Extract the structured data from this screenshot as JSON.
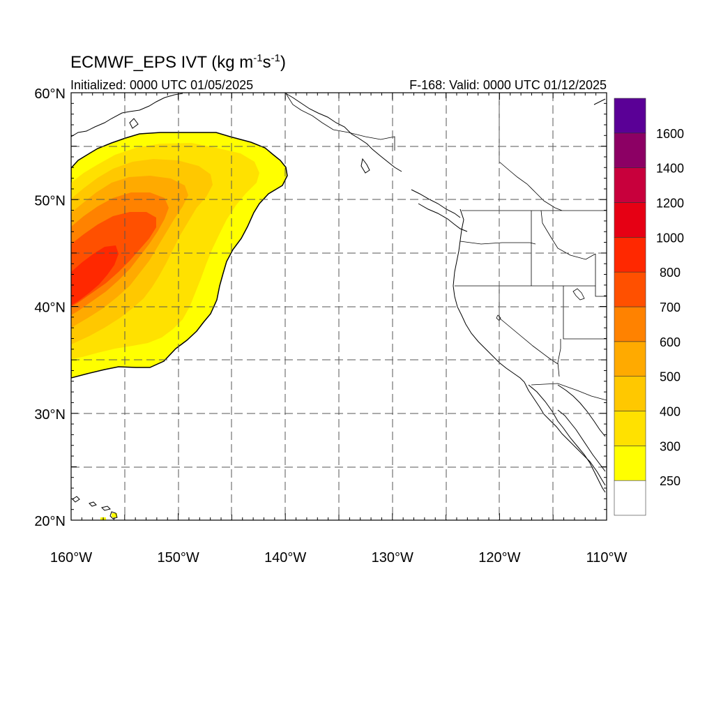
{
  "title": {
    "main": "ECMWF_EPS IVT (kg m",
    "sup1": "-1",
    "mid": "s",
    "sup2": "-1",
    "end": ")"
  },
  "subtitle_left": "Initialized: 0000 UTC 01/05/2025",
  "subtitle_right": "F-168: Valid: 0000 UTC 01/12/2025",
  "axes": {
    "lon_min": -160,
    "lon_max": -110,
    "lat_min": 20,
    "lat_max": 60,
    "x_ticks": [
      {
        "value": -160,
        "label": "160°W"
      },
      {
        "value": -150,
        "label": "150°W"
      },
      {
        "value": -140,
        "label": "140°W"
      },
      {
        "value": -130,
        "label": "130°W"
      },
      {
        "value": -120,
        "label": "120°W"
      },
      {
        "value": -110,
        "label": "110°W"
      }
    ],
    "y_ticks": [
      {
        "value": 20,
        "label": "20°N"
      },
      {
        "value": 30,
        "label": "30°N"
      },
      {
        "value": 40,
        "label": "40°N"
      },
      {
        "value": 50,
        "label": "50°N"
      },
      {
        "value": 60,
        "label": "60°N"
      }
    ],
    "grid": true
  },
  "colorbar": {
    "levels": [
      250,
      300,
      400,
      500,
      600,
      700,
      800,
      1000,
      1200,
      1400,
      1600
    ],
    "colors": [
      "#ffffff",
      "#ffff00",
      "#ffe100",
      "#ffc800",
      "#ffaa00",
      "#ff8200",
      "#ff5000",
      "#ff2800",
      "#e60014",
      "#c8003c",
      "#8c0064",
      "#5a0096"
    ]
  },
  "chart_data": {
    "type": "heatmap",
    "variable": "IVT",
    "units": "kg m-1 s-1",
    "features": [
      {
        "region": "Northeast Pacific plume",
        "lon_range": [
          -160,
          -140
        ],
        "lat_range": [
          33.5,
          56
        ],
        "max_category": "800-1000",
        "core_lon": -159,
        "core_lat": 42
      },
      {
        "region": "near Hawaii",
        "lon_range": [
          -158,
          -156
        ],
        "lat_range": [
          20,
          20.7
        ],
        "category": "250-300"
      }
    ]
  }
}
